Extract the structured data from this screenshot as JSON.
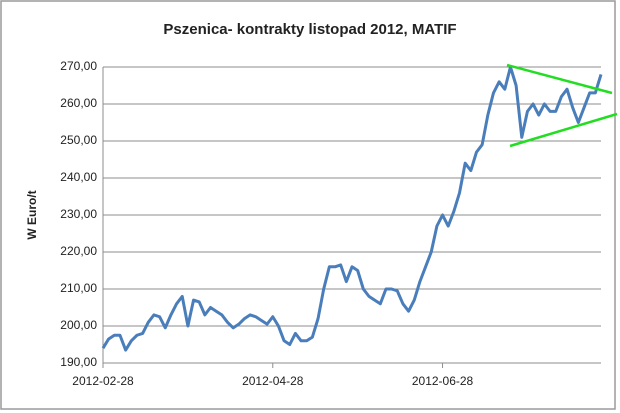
{
  "chart_data": {
    "type": "line",
    "title": "Pszenica- kontrakty listopad 2012, MATIF",
    "y_label": "W Euro/t",
    "categories": [
      "2012-02-28",
      null,
      null,
      null,
      null,
      null,
      null,
      null,
      null,
      null,
      null,
      null,
      null,
      null,
      null,
      null,
      null,
      null,
      null,
      null,
      null,
      null,
      null,
      null,
      null,
      null,
      null,
      null,
      null,
      null,
      "2012-04-28",
      null,
      null,
      null,
      null,
      null,
      null,
      null,
      null,
      null,
      null,
      null,
      null,
      null,
      null,
      null,
      null,
      null,
      null,
      null,
      null,
      null,
      null,
      null,
      null,
      null,
      null,
      null,
      null,
      null,
      "2012-06-28",
      null,
      null,
      null,
      null,
      null,
      null,
      null,
      null,
      null,
      null,
      null,
      null,
      null,
      null,
      null,
      null,
      null,
      null,
      null,
      null,
      null,
      null,
      null,
      null,
      null,
      null,
      null,
      null
    ],
    "values": [
      194,
      196.5,
      197.5,
      197.5,
      193.5,
      196,
      197.5,
      198,
      201,
      203,
      202.5,
      199.5,
      203,
      206,
      208,
      200,
      207,
      206.5,
      203,
      205,
      204,
      203,
      201,
      199.5,
      200.5,
      202,
      203,
      202.5,
      201.5,
      200.5,
      202.5,
      200,
      196,
      195,
      198,
      196,
      196,
      197,
      202,
      210,
      216,
      216,
      216.5,
      212,
      216,
      215,
      210,
      208,
      207,
      206,
      210,
      210,
      209.5,
      206,
      204,
      207,
      212,
      216,
      220,
      227,
      230,
      227,
      231,
      236,
      244,
      242,
      247,
      249,
      257,
      263,
      266,
      264,
      270,
      265,
      251,
      258,
      260,
      257,
      260,
      258,
      258,
      262,
      264,
      259,
      255,
      259,
      263,
      263,
      268
    ],
    "color": "#4a7ebb",
    "ylim": [
      190,
      270
    ],
    "yticks": [
      {
        "value": 190,
        "label": "190,00"
      },
      {
        "value": 200,
        "label": "200,00"
      },
      {
        "value": 210,
        "label": "210,00"
      },
      {
        "value": 220,
        "label": "220,00"
      },
      {
        "value": 230,
        "label": "230,00"
      },
      {
        "value": 240,
        "label": "240,00"
      },
      {
        "value": 250,
        "label": "250,00"
      },
      {
        "value": 260,
        "label": "260,00"
      },
      {
        "value": 270,
        "label": "270,00"
      }
    ],
    "grid": true
  }
}
